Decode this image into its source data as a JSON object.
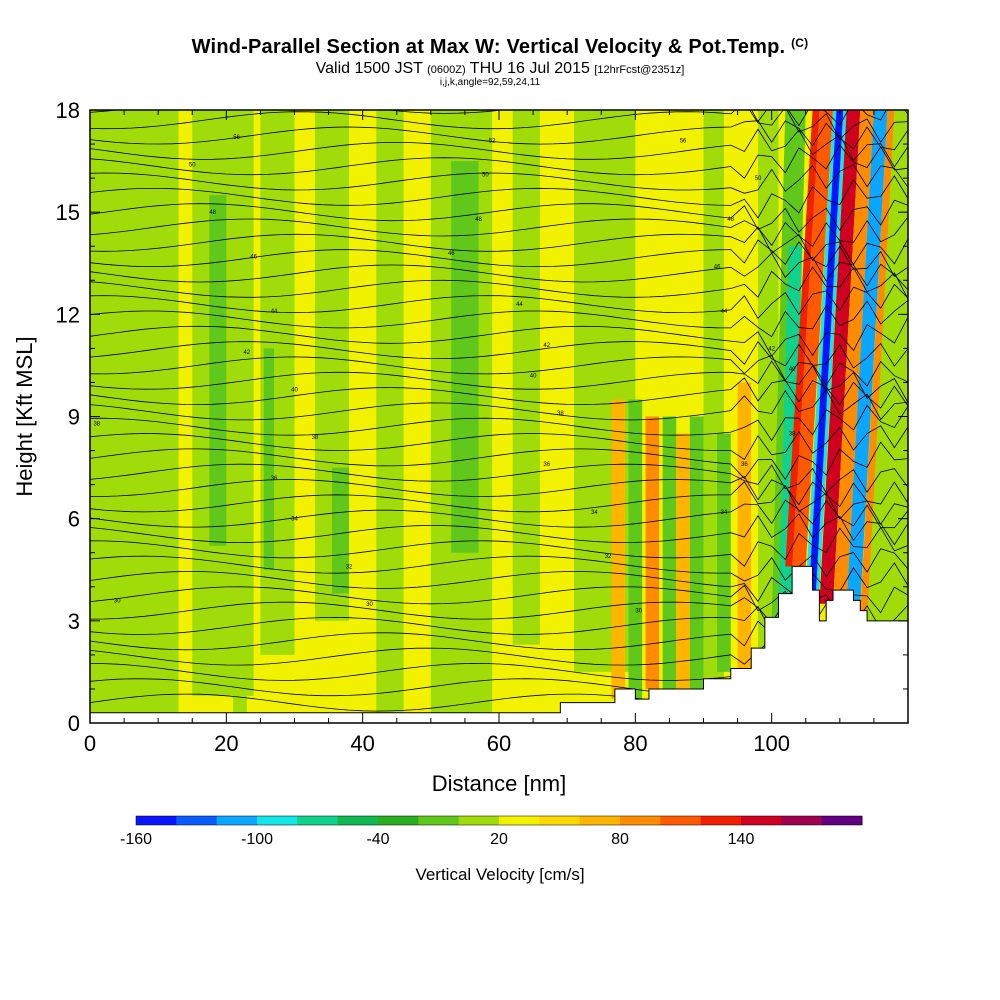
{
  "title": {
    "main": "Wind-Parallel Section at Max W: Vertical Velocity & Pot.Temp.",
    "copyright": "(C)",
    "valid_prefix": "Valid 1500 JST",
    "valid_utc": "(0600Z)",
    "valid_date": "THU 16 Jul 2015",
    "forecast": "[12hrFcst@2351z]",
    "indices": "i,j,k,angle=92,59,24,11"
  },
  "chart_data": {
    "type": "heatmap",
    "xlabel": "Distance [nm]",
    "ylabel": "Height [Kft MSL]",
    "xlim": [
      0,
      120
    ],
    "ylim": [
      0,
      18
    ],
    "x_ticks": [
      0,
      20,
      40,
      60,
      80,
      100
    ],
    "y_ticks": [
      0,
      3,
      6,
      9,
      12,
      15,
      18
    ],
    "colorbar": {
      "label": "Vertical Velocity [cm/s]",
      "tick_labels": [
        "-160",
        "-100",
        "-40",
        "20",
        "80",
        "140"
      ],
      "colors": [
        "#0a14ff",
        "#0a5cff",
        "#0aa6ff",
        "#12e6e6",
        "#10d28c",
        "#10b850",
        "#2aae1e",
        "#60c81a",
        "#a0dc0a",
        "#f2f200",
        "#ffd800",
        "#ffb400",
        "#ff8c00",
        "#ff5a00",
        "#f02000",
        "#d00020",
        "#a00050",
        "#600080"
      ]
    },
    "contour_labels": [
      {
        "text": "56",
        "x": 21.5,
        "y": 17.2
      },
      {
        "text": "52",
        "x": 59,
        "y": 17.1
      },
      {
        "text": "56",
        "x": 87,
        "y": 17.1
      },
      {
        "text": "50",
        "x": 15,
        "y": 16.4
      },
      {
        "text": "50",
        "x": 58,
        "y": 16.1
      },
      {
        "text": "50",
        "x": 98,
        "y": 16.0
      },
      {
        "text": "48",
        "x": 18,
        "y": 15.0
      },
      {
        "text": "48",
        "x": 57,
        "y": 14.8
      },
      {
        "text": "48",
        "x": 94,
        "y": 14.8
      },
      {
        "text": "46",
        "x": 24,
        "y": 13.7
      },
      {
        "text": "46",
        "x": 53,
        "y": 13.8
      },
      {
        "text": "46",
        "x": 92,
        "y": 13.4
      },
      {
        "text": "44",
        "x": 27,
        "y": 12.1
      },
      {
        "text": "44",
        "x": 63,
        "y": 12.3
      },
      {
        "text": "44",
        "x": 93,
        "y": 12.1
      },
      {
        "text": "42",
        "x": 23,
        "y": 10.9
      },
      {
        "text": "42",
        "x": 67,
        "y": 11.1
      },
      {
        "text": "42",
        "x": 100,
        "y": 11.0
      },
      {
        "text": "40",
        "x": 30,
        "y": 9.8
      },
      {
        "text": "40",
        "x": 65,
        "y": 10.2
      },
      {
        "text": "40",
        "x": 103,
        "y": 10.4
      },
      {
        "text": "38",
        "x": 1,
        "y": 8.8
      },
      {
        "text": "38",
        "x": 33,
        "y": 8.4
      },
      {
        "text": "38",
        "x": 69,
        "y": 9.1
      },
      {
        "text": "38",
        "x": 103,
        "y": 8.5
      },
      {
        "text": "36",
        "x": 27,
        "y": 7.2
      },
      {
        "text": "36",
        "x": 67,
        "y": 7.6
      },
      {
        "text": "36",
        "x": 96,
        "y": 7.6
      },
      {
        "text": "34",
        "x": 30,
        "y": 6.0
      },
      {
        "text": "34",
        "x": 74,
        "y": 6.2
      },
      {
        "text": "34",
        "x": 93,
        "y": 6.2
      },
      {
        "text": "32",
        "x": 76,
        "y": 4.9
      },
      {
        "text": "32",
        "x": 38,
        "y": 4.6
      },
      {
        "text": "30",
        "x": 4,
        "y": 3.6
      },
      {
        "text": "30",
        "x": 41,
        "y": 3.5
      },
      {
        "text": "30",
        "x": 80.5,
        "y": 3.3
      }
    ],
    "terrain_profile": [
      [
        0,
        0.3
      ],
      [
        69,
        0.3
      ],
      [
        69,
        0.6
      ],
      [
        77,
        0.6
      ],
      [
        77,
        1.0
      ],
      [
        80,
        1.0
      ],
      [
        80,
        0.7
      ],
      [
        82,
        0.7
      ],
      [
        82,
        1.0
      ],
      [
        90,
        1.0
      ],
      [
        90,
        1.3
      ],
      [
        94,
        1.3
      ],
      [
        94,
        1.6
      ],
      [
        97,
        1.6
      ],
      [
        97,
        2.2
      ],
      [
        99,
        2.2
      ],
      [
        99,
        3.1
      ],
      [
        101,
        3.1
      ],
      [
        101,
        3.8
      ],
      [
        103,
        3.8
      ],
      [
        103,
        4.6
      ],
      [
        106,
        4.6
      ],
      [
        106,
        3.9
      ],
      [
        107,
        3.9
      ],
      [
        107,
        3.0
      ],
      [
        108,
        3.0
      ],
      [
        108,
        3.6
      ],
      [
        109,
        3.6
      ],
      [
        109,
        3.9
      ],
      [
        112,
        3.9
      ],
      [
        112,
        3.6
      ],
      [
        113,
        3.6
      ],
      [
        113,
        3.3
      ],
      [
        114,
        3.3
      ],
      [
        114,
        3.0
      ],
      [
        120,
        3.0
      ],
      [
        120,
        0
      ]
    ]
  }
}
